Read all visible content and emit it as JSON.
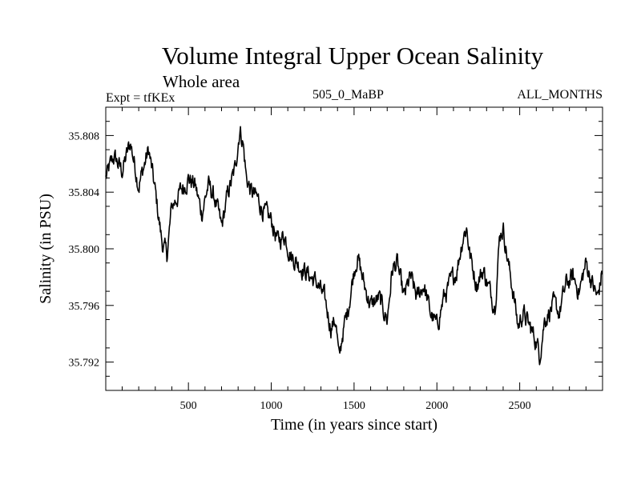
{
  "header": {
    "title": "Volume Integral Upper Ocean Salinity",
    "subtitle": "Whole area",
    "experiment": "Expt = tfKEx",
    "center_label": "505_0_MaBP",
    "right_label": "ALL_MONTHS"
  },
  "chart_data": {
    "type": "line",
    "title": "Volume Integral Upper Ocean Salinity",
    "subtitle": "Whole area",
    "xlabel": "Time (in years since start)",
    "ylabel": "Salinity (in PSU)",
    "xlim": [
      1,
      3000
    ],
    "ylim": [
      35.79,
      35.81
    ],
    "xticks": [
      500,
      1000,
      1500,
      2000,
      2500
    ],
    "xtick_labels": [
      "500",
      "1000",
      "1500",
      "2000",
      "2500"
    ],
    "yticks": [
      35.792,
      35.796,
      35.8,
      35.804,
      35.808
    ],
    "ytick_labels": [
      "35.792",
      "35.796",
      "35.800",
      "35.804",
      "35.808"
    ],
    "grid": false,
    "line_color": "#000000",
    "series": [
      {
        "x": [
          1,
          50,
          100,
          150,
          200,
          260,
          300,
          340,
          370,
          400,
          450,
          500,
          540,
          580,
          620,
          660,
          700,
          740,
          780,
          810,
          830,
          850,
          880,
          920,
          960,
          1000,
          1040,
          1080,
          1120,
          1160,
          1200,
          1240,
          1280,
          1320,
          1360,
          1390,
          1410,
          1430,
          1460,
          1500,
          1520,
          1560,
          1600,
          1650,
          1700,
          1730,
          1760,
          1800,
          1840,
          1880,
          1920,
          1960,
          2000,
          2040,
          2080,
          2120,
          2160,
          2180,
          2200,
          2240,
          2280,
          2320,
          2350,
          2380,
          2400,
          2430,
          2460,
          2490,
          2520,
          2560,
          2600,
          2620,
          2650,
          2700,
          2740,
          2780,
          2820,
          2860,
          2900,
          2940,
          2970,
          3000
        ],
        "values": [
          35.805,
          35.8065,
          35.8055,
          35.8075,
          35.8045,
          35.807,
          35.804,
          35.8005,
          35.7995,
          35.803,
          35.804,
          35.805,
          35.8045,
          35.8025,
          35.8045,
          35.8035,
          35.8015,
          35.804,
          35.8055,
          35.8085,
          35.8075,
          35.805,
          35.804,
          35.8035,
          35.8025,
          35.802,
          35.8005,
          35.801,
          35.7995,
          35.799,
          35.7985,
          35.798,
          35.7975,
          35.7965,
          35.7945,
          35.795,
          35.792,
          35.794,
          35.7955,
          35.7985,
          35.7995,
          35.7975,
          35.796,
          35.7965,
          35.795,
          35.7985,
          35.799,
          35.7965,
          35.798,
          35.7965,
          35.7975,
          35.7955,
          35.7945,
          35.7965,
          35.7975,
          35.7985,
          35.801,
          35.8015,
          35.7995,
          35.7975,
          35.7985,
          35.797,
          35.796,
          35.801,
          35.8015,
          35.799,
          35.797,
          35.7945,
          35.7955,
          35.7945,
          35.7935,
          35.7925,
          35.795,
          35.796,
          35.7955,
          35.7975,
          35.798,
          35.797,
          35.799,
          35.7975,
          35.7965,
          35.7985
        ]
      }
    ]
  }
}
